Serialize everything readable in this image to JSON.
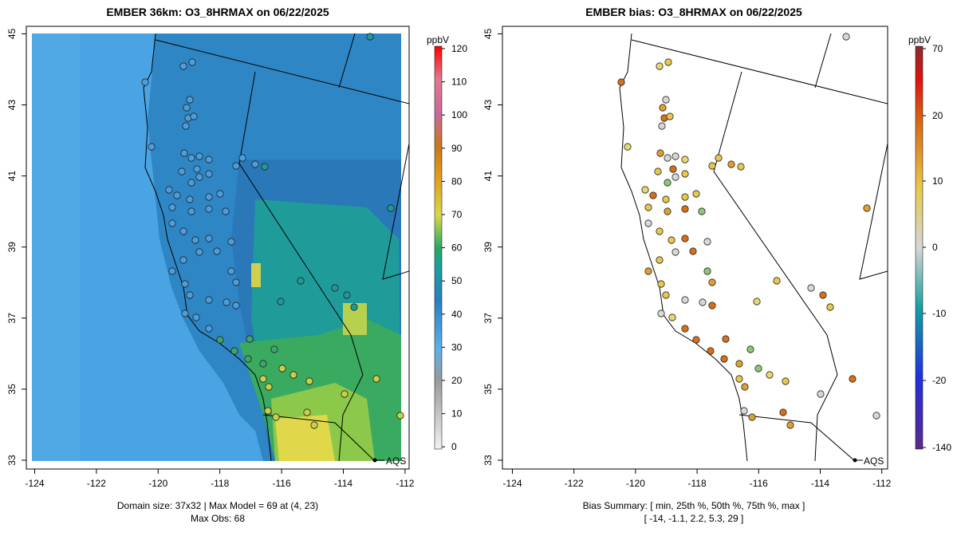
{
  "left_panel": {
    "title": "EMBER 36km: O3_8HRMAX on 06/22/2025",
    "colorbar_unit": "ppbV",
    "colorbar_ticks": [
      "120",
      "110",
      "100",
      "90",
      "80",
      "70",
      "60",
      "50",
      "40",
      "30",
      "20",
      "10",
      "0"
    ],
    "footer_line1": "Domain size: 37x32 | Max Model = 69 at (4, 23)",
    "footer_line2": "Max Obs: 68",
    "marker_label": "AQS"
  },
  "right_panel": {
    "title": "EMBER bias: O3_8HRMAX on 06/22/2025",
    "colorbar_unit": "ppbV",
    "colorbar_ticks": [
      "70",
      "20",
      "10",
      "0",
      "-10",
      "-20",
      "-140"
    ],
    "footer_line1": "Bias Summary: [ min, 25th %, 50th %, 75th %, max ]",
    "footer_line2": "[ -14,   -1.1,   2.2,   5.3,   29 ]",
    "marker_label": "AQS"
  },
  "axes": {
    "lon_ticks": [
      "-124",
      "-122",
      "-120",
      "-118",
      "-116",
      "-114",
      "-112"
    ],
    "lat_ticks": [
      "33",
      "35",
      "37",
      "39",
      "41",
      "43",
      "45"
    ]
  },
  "colors": {
    "ocean_fill": "#4aa3e2",
    "model_mid": "#2a7fc0",
    "model_high": "#d8d84a",
    "bias_positive": "#e08a18",
    "bias_negative": "#2aa07a"
  },
  "chart_data": [
    {
      "type": "heatmap",
      "title": "EMBER 36km: O3_8HRMAX on 06/22/2025",
      "units": "ppbV",
      "xlim": [
        -124.2,
        -111.8
      ],
      "ylim": [
        32.9,
        45.1
      ],
      "color_range": [
        0,
        120
      ],
      "domain_size": "37x32",
      "max_model": 69,
      "max_obs": 68
    },
    {
      "type": "scatter",
      "title": "EMBER bias: O3_8HRMAX on 06/22/2025",
      "units": "ppbV",
      "xlim": [
        -124.2,
        -111.8
      ],
      "ylim": [
        32.9,
        45.1
      ],
      "color_range": [
        -140,
        70
      ],
      "bias_summary": {
        "min": -14,
        "p25": -1.1,
        "p50": 2.2,
        "p75": 5.3,
        "max": 29
      }
    }
  ]
}
